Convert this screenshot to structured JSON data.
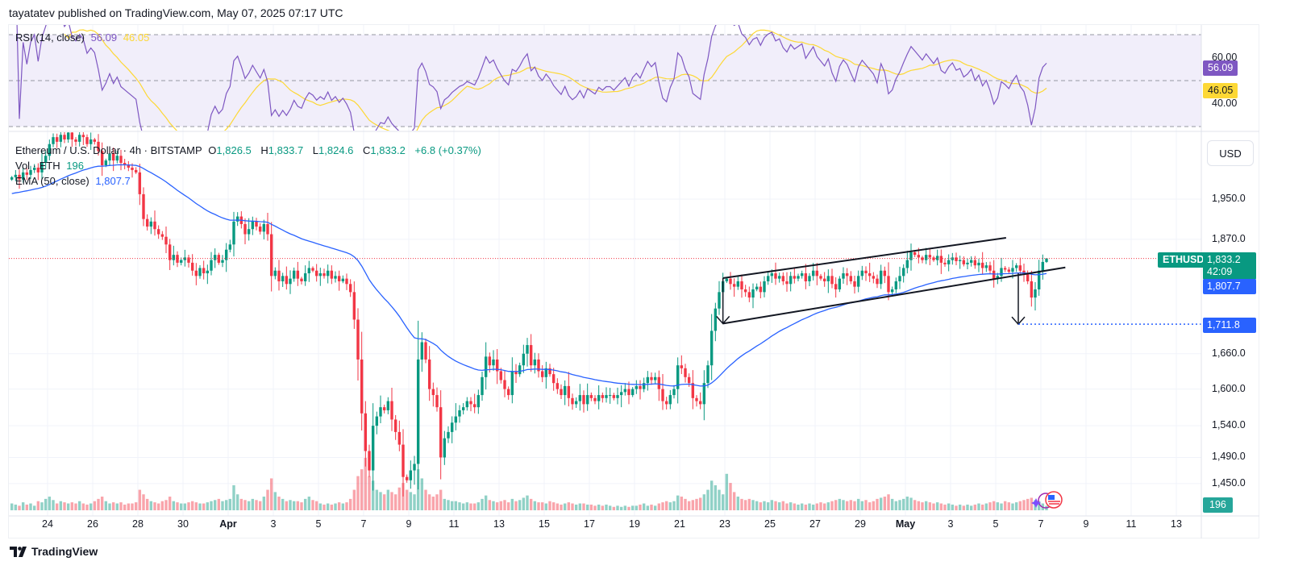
{
  "publisher": "tayatatev published on TradingView.com, May 07, 2025 07:17 UTC",
  "footer": {
    "logo_text": "TradingView"
  },
  "rsi_legend": {
    "label": "RSI (14, close)",
    "rsi_value": "56.09",
    "ma_value": "46.05"
  },
  "legend": {
    "symbol": "Ethereum / U.S. Dollar · 4h · BITSTAMP",
    "o_label": "O",
    "o": "1,826.5",
    "h_label": "H",
    "h": "1,833.7",
    "l_label": "L",
    "l": "1,824.6",
    "c_label": "C",
    "c": "1,833.2",
    "change": "+6.8 (+0.37%)",
    "vol_label": "Vol · ETH",
    "vol_value": "196",
    "ema_label": "EMA (50, close)",
    "ema_value": "1,807.7"
  },
  "axis": {
    "currency_button": "USD",
    "rsi_ticks": [
      "60.00",
      "40.00"
    ],
    "price_ticks": [
      "1,950.0",
      "1,870.0",
      "1,660.0",
      "1,600.0",
      "1,540.0",
      "1,490.0",
      "1,450.0"
    ],
    "badges": {
      "rsi": "56.09",
      "rsi_ma": "46.05",
      "symbol": "ETHUSD",
      "last_price": "1,833.2",
      "countdown": "42:09",
      "ema": "1,807.7",
      "target": "1,711.8",
      "volume": "196"
    },
    "time_ticks": [
      "24",
      "26",
      "28",
      "30",
      "Apr",
      "3",
      "5",
      "7",
      "9",
      "11",
      "13",
      "15",
      "17",
      "19",
      "21",
      "23",
      "25",
      "27",
      "29",
      "May",
      "3",
      "5",
      "7",
      "9",
      "11",
      "13"
    ]
  },
  "colors": {
    "up": "#089981",
    "down": "#f23645",
    "ema": "#2962ff",
    "rsi": "#7e57c2",
    "rsi_ma": "#fdd835",
    "rsi_band": "#f1eefa",
    "target_line": "#2962ff",
    "last_price_line": "#f23645",
    "drawing": "#131722"
  },
  "chart_data": {
    "type": "candlestick",
    "symbol": "ETHUSD",
    "exchange": "BITSTAMP",
    "interval": "4h",
    "price_scale": "log",
    "ylim": [
      1420,
      2130
    ],
    "first_bar": "2025-03-22T08:00Z",
    "grid": true,
    "last_bar": {
      "open": 1826.5,
      "high": 1833.7,
      "low": 1824.6,
      "close": 1833.2,
      "volume": 196
    },
    "close": [
      1995,
      2000,
      1990,
      2005,
      2000,
      2010,
      2015,
      2005,
      2025,
      2040,
      2065,
      2080,
      2070,
      2085,
      2075,
      2090,
      2075,
      2070,
      2085,
      2080,
      2065,
      2075,
      2070,
      2050,
      2020,
      2030,
      2045,
      2030,
      2040,
      2025,
      2020,
      2015,
      2010,
      2005,
      1960,
      1910,
      1895,
      1905,
      1890,
      1880,
      1875,
      1860,
      1830,
      1840,
      1825,
      1830,
      1835,
      1825,
      1810,
      1800,
      1815,
      1805,
      1810,
      1830,
      1840,
      1825,
      1830,
      1850,
      1860,
      1905,
      1915,
      1900,
      1880,
      1890,
      1905,
      1895,
      1885,
      1900,
      1880,
      1800,
      1810,
      1790,
      1800,
      1785,
      1795,
      1810,
      1795,
      1790,
      1805,
      1815,
      1810,
      1800,
      1805,
      1800,
      1810,
      1795,
      1800,
      1790,
      1795,
      1785,
      1770,
      1720,
      1650,
      1560,
      1500,
      1470,
      1540,
      1555,
      1570,
      1565,
      1580,
      1550,
      1530,
      1510,
      1460,
      1455,
      1470,
      1480,
      1650,
      1680,
      1650,
      1600,
      1590,
      1570,
      1490,
      1520,
      1530,
      1545,
      1555,
      1565,
      1570,
      1580,
      1575,
      1570,
      1590,
      1620,
      1655,
      1640,
      1650,
      1630,
      1615,
      1600,
      1590,
      1630,
      1625,
      1640,
      1660,
      1675,
      1640,
      1650,
      1630,
      1620,
      1635,
      1625,
      1610,
      1600,
      1590,
      1605,
      1585,
      1575,
      1580,
      1590,
      1575,
      1590,
      1585,
      1580,
      1590,
      1585,
      1590,
      1590,
      1585,
      1590,
      1595,
      1600,
      1590,
      1600,
      1605,
      1600,
      1610,
      1620,
      1615,
      1620,
      1600,
      1580,
      1575,
      1590,
      1600,
      1640,
      1635,
      1620,
      1610,
      1585,
      1580,
      1575,
      1610,
      1640,
      1700,
      1740,
      1770,
      1790,
      1795,
      1785,
      1780,
      1790,
      1775,
      1770,
      1760,
      1775,
      1780,
      1770,
      1790,
      1800,
      1805,
      1795,
      1800,
      1790,
      1785,
      1800,
      1795,
      1800,
      1805,
      1790,
      1800,
      1810,
      1800,
      1795,
      1790,
      1800,
      1785,
      1775,
      1795,
      1805,
      1800,
      1790,
      1780,
      1800,
      1810,
      1805,
      1800,
      1795,
      1785,
      1810,
      1800,
      1770,
      1775,
      1790,
      1800,
      1815,
      1830,
      1845,
      1840,
      1835,
      1830,
      1840,
      1835,
      1830,
      1838,
      1825,
      1822,
      1830,
      1835,
      1828,
      1830,
      1822,
      1825,
      1830,
      1820,
      1825,
      1815,
      1820,
      1810,
      1795,
      1800,
      1815,
      1812,
      1808,
      1815,
      1820,
      1810,
      1805,
      1790,
      1760,
      1775,
      1810,
      1826.5,
      1833.2
    ],
    "volume": [
      300,
      250,
      200,
      350,
      250,
      300,
      200,
      400,
      350,
      500,
      600,
      450,
      300,
      400,
      350,
      300,
      350,
      300,
      400,
      300,
      250,
      300,
      400,
      500,
      600,
      400,
      300,
      350,
      300,
      350,
      250,
      300,
      300,
      350,
      900,
      700,
      500,
      400,
      350,
      300,
      400,
      450,
      600,
      400,
      350,
      300,
      300,
      350,
      400,
      350,
      300,
      300,
      350,
      400,
      450,
      500,
      400,
      450,
      500,
      1100,
      700,
      500,
      450,
      400,
      500,
      450,
      400,
      600,
      900,
      1400,
      800,
      600,
      500,
      400,
      450,
      400,
      400,
      350,
      500,
      600,
      450,
      400,
      300,
      250,
      300,
      250,
      300,
      350,
      300,
      350,
      500,
      900,
      1500,
      1800,
      2300,
      1500,
      1300,
      900,
      800,
      700,
      900,
      800,
      700,
      1000,
      1200,
      900,
      800,
      700,
      1800,
      1400,
      900,
      700,
      600,
      700,
      900,
      500,
      450,
      400,
      400,
      350,
      300,
      350,
      300,
      300,
      350,
      500,
      650,
      450,
      400,
      350,
      400,
      450,
      350,
      500,
      400,
      450,
      550,
      650,
      500,
      400,
      350,
      350,
      300,
      400,
      350,
      300,
      250,
      300,
      350,
      300,
      250,
      300,
      300,
      250,
      250,
      200,
      250,
      200,
      250,
      200,
      150,
      200,
      150,
      200,
      150,
      200,
      200,
      250,
      300,
      200,
      250,
      200,
      300,
      350,
      400,
      350,
      400,
      650,
      600,
      500,
      400,
      450,
      500,
      550,
      700,
      900,
      1300,
      1100,
      900,
      700,
      1600,
      1200,
      800,
      600,
      500,
      450,
      500,
      450,
      400,
      350,
      400,
      350,
      450,
      400,
      350,
      400,
      300,
      350,
      300,
      250,
      300,
      250,
      300,
      250,
      300,
      350,
      300,
      350,
      400,
      450,
      500,
      450,
      400,
      450,
      400,
      500,
      400,
      450,
      350,
      400,
      500,
      550,
      600,
      700,
      500,
      400,
      450,
      500,
      600,
      550,
      450,
      400,
      350,
      400,
      350,
      300,
      350,
      300,
      250,
      300,
      250,
      200,
      250,
      200,
      250,
      200,
      250,
      300,
      250,
      300,
      350,
      400,
      350,
      300,
      400,
      350,
      300,
      350,
      400,
      450,
      500,
      550,
      450,
      400,
      300,
      196
    ],
    "price_tick_values": [
      1950,
      1870,
      1660,
      1600,
      1540,
      1490,
      1450
    ],
    "rsi_tick_values": [
      60,
      40
    ],
    "rsi_bands": [
      70,
      50,
      30
    ],
    "time_tick_dates": [
      "2025-03-24",
      "2025-03-26",
      "2025-03-28",
      "2025-03-30",
      "2025-04-01",
      "2025-04-03",
      "2025-04-05",
      "2025-04-07",
      "2025-04-09",
      "2025-04-11",
      "2025-04-13",
      "2025-04-15",
      "2025-04-17",
      "2025-04-19",
      "2025-04-21",
      "2025-04-23",
      "2025-04-25",
      "2025-04-27",
      "2025-04-29",
      "2025-05-01",
      "2025-05-03",
      "2025-05-05",
      "2025-05-07",
      "2025-05-09",
      "2025-05-11",
      "2025-05-13"
    ],
    "indicators": {
      "ema_period": 50,
      "rsi_period": 14,
      "rsi_ma_period": 14,
      "ema_last": 1807.7,
      "rsi_last": 56.09,
      "rsi_ma_last": 46.05
    },
    "drawings": {
      "channel_upper": [
        [
          "2025-04-22T22:00Z",
          1796
        ],
        [
          "2025-05-05T11:00Z",
          1873
        ]
      ],
      "channel_lower": [
        [
          "2025-04-22T22:00Z",
          1713
        ],
        [
          "2025-05-08T02:00Z",
          1816
        ]
      ],
      "arrow_left": [
        [
          "2025-04-22T22:00Z",
          1796
        ],
        [
          "2025-04-22T22:00Z",
          1713
        ]
      ],
      "arrow_right": [
        [
          "2025-05-06T00:00Z",
          1805
        ],
        [
          "2025-05-06T00:00Z",
          1711.8
        ]
      ],
      "target_price": 1711.8,
      "last_price": 1833.2
    }
  }
}
